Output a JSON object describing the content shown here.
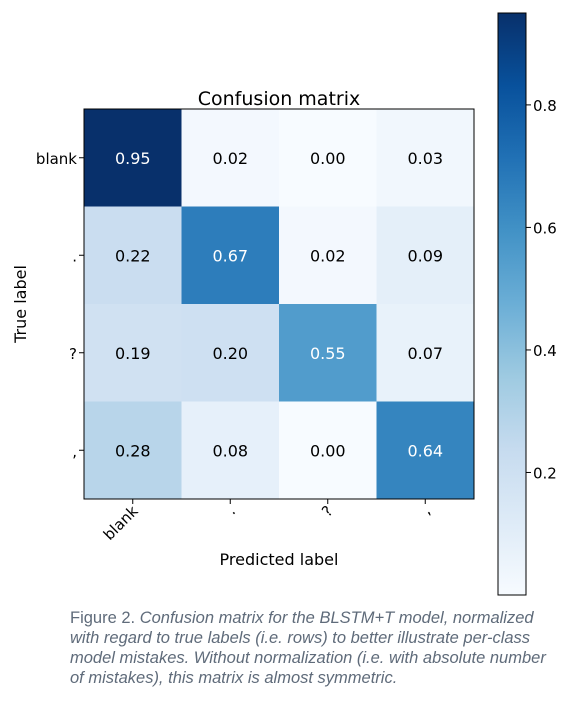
{
  "chart_data": {
    "type": "heatmap",
    "title": "Confusion matrix",
    "xlabel": "Predicted label",
    "ylabel": "True label",
    "x_categories": [
      "blank",
      ".",
      "?",
      ","
    ],
    "y_categories": [
      "blank",
      ".",
      "?",
      ","
    ],
    "values": [
      [
        0.95,
        0.02,
        0.0,
        0.03
      ],
      [
        0.22,
        0.67,
        0.02,
        0.09
      ],
      [
        0.19,
        0.2,
        0.55,
        0.07
      ],
      [
        0.28,
        0.08,
        0.0,
        0.64
      ]
    ],
    "colormap": "Blues",
    "colorbar": {
      "range": [
        0.0,
        0.95
      ],
      "ticks": [
        0.2,
        0.4,
        0.6,
        0.8
      ],
      "tick_labels": [
        "0.2",
        "0.4",
        "0.6",
        "0.8"
      ]
    }
  },
  "caption": {
    "prefix": "Figure 2. ",
    "text": "Confusion matrix for the BLSTM+T model, normalized with regard to true labels (i.e. rows) to better illustrate per-class model mistakes. Without normalization (i.e. with absolute number of mistakes), this matrix is almost symmetric."
  }
}
